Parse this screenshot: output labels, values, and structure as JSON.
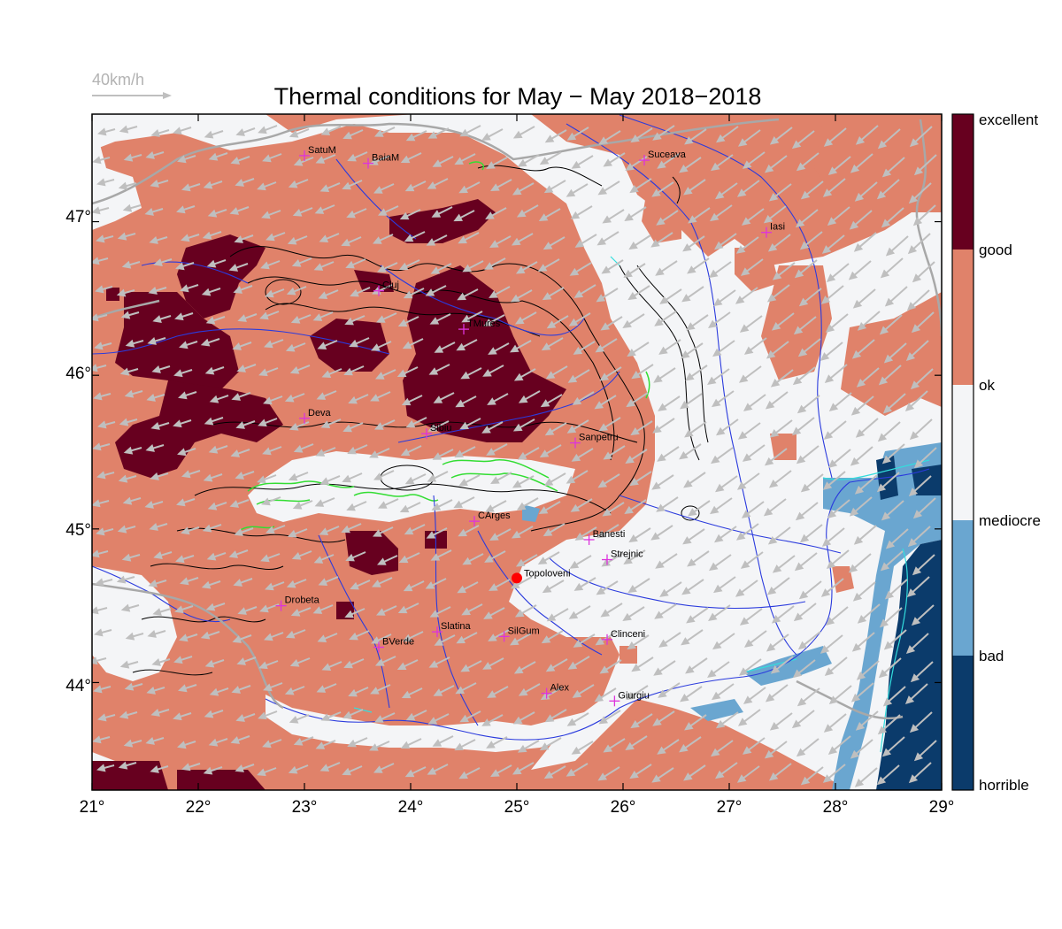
{
  "title": "Thermal conditions for May − May  2018−2018",
  "wind_scale_label": "40km/h",
  "x_ticks": [
    "21°",
    "22°",
    "23°",
    "24°",
    "25°",
    "26°",
    "27°",
    "28°",
    "29°"
  ],
  "y_ticks": [
    "47°",
    "46°",
    "45°",
    "44°"
  ],
  "colorbar": {
    "labels": [
      "excellent",
      "good",
      "ok",
      "mediocre",
      "bad",
      "horrible"
    ],
    "colors": {
      "excellent": "#67001f",
      "ok_good": "#e0826a",
      "neutral": "#f4f5f7",
      "bad": "#6aa6d0",
      "horrible": "#0b3b6b"
    }
  },
  "map_extent": {
    "lon": [
      21,
      29
    ],
    "lat": [
      43.3,
      47.7
    ]
  },
  "highlight_location": {
    "name": "Topoloveni",
    "lon": 25.0,
    "lat": 44.68,
    "color": "#ff0000"
  },
  "cities": [
    {
      "name": "SatuM",
      "lon": 23.0,
      "lat": 47.43
    },
    {
      "name": "BaiaM",
      "lon": 23.6,
      "lat": 47.38
    },
    {
      "name": "Suceava",
      "lon": 26.2,
      "lat": 47.4
    },
    {
      "name": "Iasi",
      "lon": 27.35,
      "lat": 46.93
    },
    {
      "name": "Cluj",
      "lon": 23.7,
      "lat": 46.55
    },
    {
      "name": "TMures",
      "lon": 24.5,
      "lat": 46.3
    },
    {
      "name": "Deva",
      "lon": 23.0,
      "lat": 45.72
    },
    {
      "name": "Sibiu",
      "lon": 24.15,
      "lat": 45.62
    },
    {
      "name": "Sanpetru",
      "lon": 25.55,
      "lat": 45.56
    },
    {
      "name": "CArges",
      "lon": 24.6,
      "lat": 45.05
    },
    {
      "name": "Banesti",
      "lon": 25.68,
      "lat": 44.93
    },
    {
      "name": "Strejnic",
      "lon": 25.85,
      "lat": 44.8
    },
    {
      "name": "Drobeta",
      "lon": 22.78,
      "lat": 44.5
    },
    {
      "name": "Slatina",
      "lon": 24.25,
      "lat": 44.33
    },
    {
      "name": "SilGum",
      "lon": 24.88,
      "lat": 44.3
    },
    {
      "name": "Clinceni",
      "lon": 25.85,
      "lat": 44.28
    },
    {
      "name": "BVerde",
      "lon": 23.7,
      "lat": 44.23
    },
    {
      "name": "Alex",
      "lon": 25.28,
      "lat": 43.93
    },
    {
      "name": "Giurgiu",
      "lon": 25.92,
      "lat": 43.88
    }
  ]
}
